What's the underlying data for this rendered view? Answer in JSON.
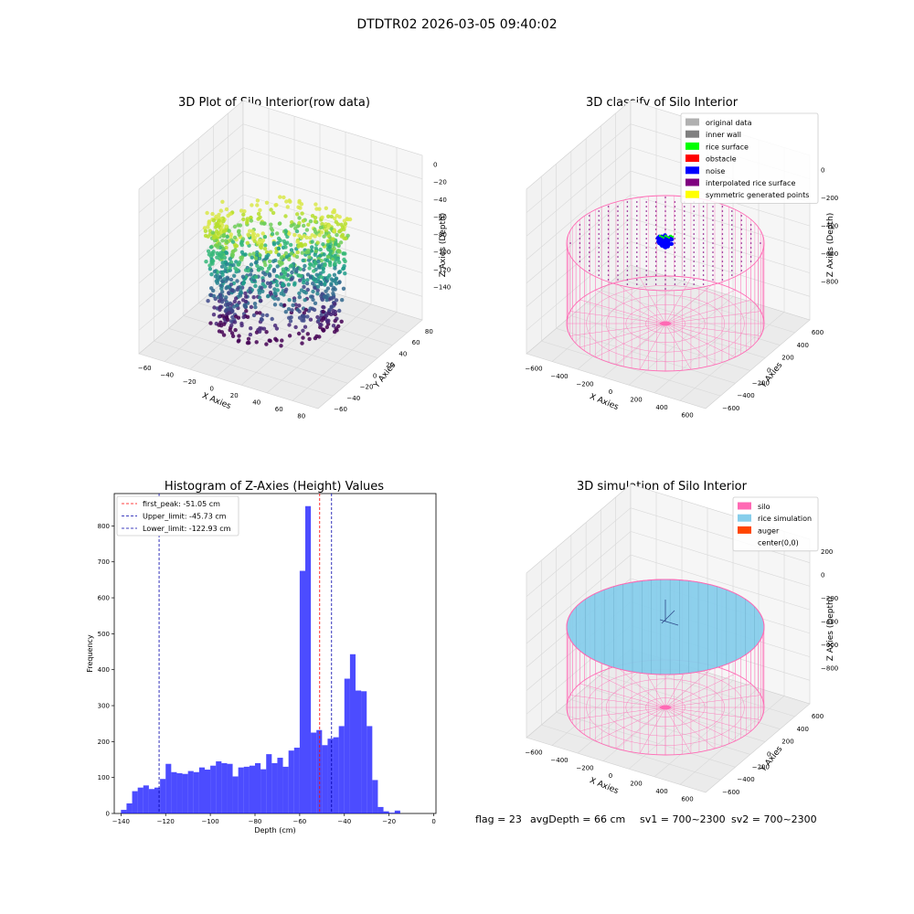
{
  "suptitle": "DTDTR02 2026-03-05 09:40:02",
  "status_text": {
    "flag": "flag = 23",
    "avg_depth": "avgDepth = 66 cm",
    "sv1": "sv1 = 700~2300",
    "sv2": "sv2 = 700~2300"
  },
  "colors": {
    "silo_pink": "#ff69b4",
    "rice_blue": "#87ceeb",
    "auger": "#ff4500",
    "hist_blue": "#0000ff",
    "peak_red": "#ff0000",
    "limit_blue": "#0000aa",
    "pane": "#f2f2f2"
  },
  "chart_data": [
    {
      "id": "raw",
      "type": "scatter",
      "title": "3D Plot of Silo Interior(row data)",
      "xlabel": "X Axies",
      "ylabel": "Y Axies",
      "zlabel": "Z Axies (Depth)",
      "xticks": [
        "−60",
        "−40",
        "−20",
        "0",
        "20",
        "40",
        "60",
        "80"
      ],
      "yticks": [
        "−60",
        "−40",
        "−20",
        "0",
        "20",
        "40",
        "60",
        "80"
      ],
      "zticks": [
        "0",
        "−20",
        "−40",
        "−60",
        "−80",
        "−100",
        "−120",
        "−140"
      ],
      "xlim": [
        -70,
        90
      ],
      "ylim": [
        -70,
        90
      ],
      "zlim": [
        -145,
        5
      ],
      "colormap": "viridis"
    },
    {
      "id": "classify",
      "type": "scatter",
      "title": "3D classify of Silo Interior",
      "xlabel": "X Axies",
      "ylabel": "Y Axies",
      "zlabel": "Z Axies (Depth)",
      "xticks": [
        "−600",
        "−400",
        "−200",
        "0",
        "200",
        "400",
        "600"
      ],
      "yticks": [
        "−600",
        "−400",
        "−200",
        "0",
        "200",
        "400",
        "600"
      ],
      "zticks": [
        "0",
        "−200",
        "−400",
        "−600",
        "−800"
      ],
      "legend": [
        {
          "label": "original data",
          "color": "#b0b0b0"
        },
        {
          "label": "inner wall",
          "color": "#808080"
        },
        {
          "label": "rice surface",
          "color": "#00ff00"
        },
        {
          "label": "obstacle",
          "color": "#ff0000"
        },
        {
          "label": "noise",
          "color": "#0000ff"
        },
        {
          "label": "interpolated rice surface",
          "color": "#800080"
        },
        {
          "label": "symmetric generated points",
          "color": "#ffff00"
        }
      ]
    },
    {
      "id": "hist",
      "type": "bar",
      "title": "Histogram of Z-Axies (Height) Values",
      "xlabel": "Depth (cm)",
      "ylabel": "Frequency",
      "xlim": [
        -143,
        1
      ],
      "ylim": [
        0,
        890
      ],
      "xticks": [
        -140,
        -120,
        -100,
        -80,
        -60,
        -40,
        -20,
        0
      ],
      "yticks": [
        0,
        100,
        200,
        300,
        400,
        500,
        600,
        700,
        800
      ],
      "bin_start": -140,
      "bin_width": 2.5,
      "values": [
        10,
        28,
        62,
        72,
        78,
        68,
        72,
        96,
        138,
        115,
        112,
        110,
        118,
        115,
        128,
        122,
        133,
        145,
        140,
        138,
        103,
        128,
        130,
        133,
        140,
        123,
        165,
        140,
        155,
        130,
        175,
        183,
        675,
        855,
        225,
        232,
        190,
        208,
        212,
        243,
        375,
        443,
        342,
        340,
        243,
        93,
        18,
        6,
        2,
        8
      ],
      "lines": [
        {
          "label": "first_peak: -51.05 cm",
          "x": -51.05,
          "color": "#ff0000"
        },
        {
          "label": "Upper_limit: -45.73 cm",
          "x": -45.73,
          "color": "#0000aa"
        },
        {
          "label": "Lower_limit: -122.93 cm",
          "x": -122.93,
          "color": "#0000aa"
        }
      ]
    },
    {
      "id": "sim",
      "type": "scatter",
      "title": "3D simulation of Silo Interior",
      "xlabel": "X Axies",
      "ylabel": "Y Axies",
      "zlabel": "Z Axies (Depth)",
      "xticks": [
        "−600",
        "−400",
        "−200",
        "0",
        "200",
        "400",
        "600"
      ],
      "yticks": [
        "−600",
        "−400",
        "−200",
        "0",
        "200",
        "400",
        "600"
      ],
      "zticks": [
        "200",
        "0",
        "−200",
        "−400",
        "−600",
        "−800"
      ],
      "legend": [
        {
          "label": "silo",
          "color": "#ff69b4"
        },
        {
          "label": "rice simulation",
          "color": "#87ceeb"
        },
        {
          "label": "auger",
          "color": "#ff4500"
        },
        {
          "label": "center(0,0)",
          "color": ""
        }
      ]
    }
  ]
}
